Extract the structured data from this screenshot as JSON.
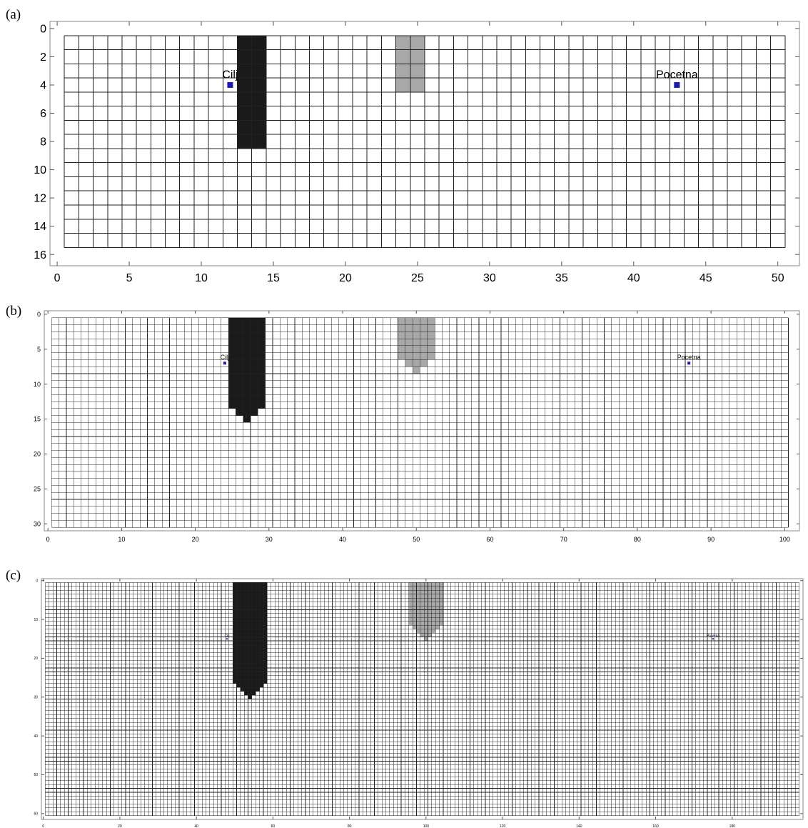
{
  "panels": [
    {
      "label": "(a)",
      "xlim": [
        -0.5,
        51.5
      ],
      "ylim": [
        -0.5,
        16.8
      ],
      "xticks": [
        0,
        5,
        10,
        15,
        20,
        25,
        30,
        35,
        40,
        45,
        50
      ],
      "yticks": [
        0,
        2,
        4,
        6,
        8,
        10,
        12,
        14,
        16
      ],
      "grid": {
        "x_from": 0.5,
        "x_to": 50.5,
        "y_from": 0.5,
        "y_to": 15.5,
        "step": 1
      },
      "obstacles": [
        {
          "color": "#1a1a1a",
          "cells": [
            [
              13,
              1,
              14,
              8
            ]
          ]
        },
        {
          "color": "#a8a8a8",
          "cells": [
            [
              24,
              1,
              25,
              4
            ]
          ]
        }
      ],
      "points": [
        {
          "name": "Cilj",
          "x": 12,
          "y": 4,
          "color": "#1b1bb3"
        },
        {
          "name": "Pocetna",
          "x": 43,
          "y": 4,
          "color": "#1b1bb3"
        }
      ]
    },
    {
      "label": "(b)",
      "xlim": [
        -0.5,
        102.0
      ],
      "ylim": [
        -0.5,
        31.0
      ],
      "xticks": [
        0,
        10,
        20,
        30,
        40,
        50,
        60,
        70,
        80,
        90,
        100
      ],
      "yticks": [
        0,
        5,
        10,
        15,
        20,
        25,
        30
      ],
      "grid": {
        "x_from": 0.5,
        "x_to": 100.5,
        "y_from": 0.5,
        "y_to": 30.5,
        "step": 1
      },
      "obstacles": [
        {
          "color": "#1a1a1a",
          "cells": [
            [
              25,
              1,
              29,
              13
            ],
            [
              26,
              14,
              28,
              14
            ],
            [
              27,
              15,
              27,
              15
            ]
          ]
        },
        {
          "color": "#a8a8a8",
          "cells": [
            [
              48,
              1,
              52,
              6
            ],
            [
              49,
              7,
              51,
              7
            ],
            [
              50,
              8,
              50,
              8
            ]
          ]
        }
      ],
      "points": [
        {
          "name": "Cilj",
          "x": 24,
          "y": 7,
          "color": "#1b1bb3"
        },
        {
          "name": "Pocetna",
          "x": 87,
          "y": 7,
          "color": "#1b1bb3"
        }
      ]
    },
    {
      "label": "(c)",
      "xlim": [
        -0.5,
        198.5
      ],
      "ylim": [
        -0.5,
        61.5
      ],
      "xticks": [
        0,
        20,
        40,
        60,
        80,
        100,
        120,
        140,
        160,
        180
      ],
      "yticks": [
        0,
        10,
        20,
        30,
        40,
        50,
        60
      ],
      "grid": {
        "x_from": 0.5,
        "x_to": 197.5,
        "y_from": 0.5,
        "y_to": 60.5,
        "step": 1
      },
      "obstacles": [
        {
          "color": "#1a1a1a",
          "cells": [
            [
              50,
              1,
              58,
              26
            ],
            [
              51,
              27,
              57,
              27
            ],
            [
              52,
              28,
              56,
              28
            ],
            [
              53,
              29,
              55,
              29
            ],
            [
              54,
              30,
              54,
              30
            ]
          ]
        },
        {
          "color": "#a8a8a8",
          "cells": [
            [
              96,
              1,
              104,
              11
            ],
            [
              97,
              12,
              103,
              12
            ],
            [
              98,
              13,
              102,
              13
            ],
            [
              99,
              14,
              101,
              14
            ],
            [
              100,
              15,
              100,
              15
            ]
          ]
        }
      ],
      "points": [
        {
          "name": "Cilj",
          "x": 48,
          "y": 15,
          "color": "#1b1bb3"
        },
        {
          "name": "Pocetna",
          "x": 175,
          "y": 15,
          "color": "#1b1bb3"
        }
      ]
    }
  ]
}
